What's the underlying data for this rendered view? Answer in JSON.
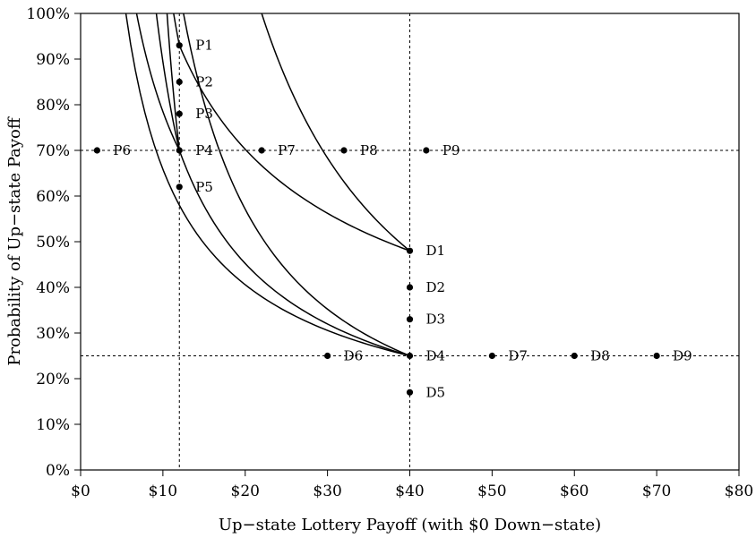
{
  "chart_data": {
    "type": "scatter",
    "xlabel": "Up−state Lottery Payoff (with $0 Down−state)",
    "ylabel": "Probability of Up−state Payoff",
    "xlim": [
      0,
      80
    ],
    "ylim": [
      0,
      100
    ],
    "x_ticks": [
      0,
      10,
      20,
      30,
      40,
      50,
      60,
      70,
      80
    ],
    "x_tick_labels": [
      "$0",
      "$10",
      "$20",
      "$30",
      "$40",
      "$50",
      "$60",
      "$70",
      "$80"
    ],
    "y_ticks": [
      0,
      10,
      20,
      30,
      40,
      50,
      60,
      70,
      80,
      90,
      100
    ],
    "y_tick_labels": [
      "0%",
      "10%",
      "20%",
      "30%",
      "40%",
      "50%",
      "60%",
      "70%",
      "80%",
      "90%",
      "100%"
    ],
    "grid": false,
    "reference_lines": [
      {
        "orientation": "vertical",
        "value": 12
      },
      {
        "orientation": "vertical",
        "value": 40
      },
      {
        "orientation": "horizontal",
        "value": 70
      },
      {
        "orientation": "horizontal",
        "value": 25
      }
    ],
    "points": [
      {
        "label": "P1",
        "x": 12,
        "y": 93
      },
      {
        "label": "P2",
        "x": 12,
        "y": 85
      },
      {
        "label": "P3",
        "x": 12,
        "y": 78
      },
      {
        "label": "P4",
        "x": 12,
        "y": 70
      },
      {
        "label": "P5",
        "x": 12,
        "y": 62
      },
      {
        "label": "P6",
        "x": 2,
        "y": 70
      },
      {
        "label": "P7",
        "x": 22,
        "y": 70
      },
      {
        "label": "P8",
        "x": 32,
        "y": 70
      },
      {
        "label": "P9",
        "x": 42,
        "y": 70
      },
      {
        "label": "D1",
        "x": 40,
        "y": 48
      },
      {
        "label": "D2",
        "x": 40,
        "y": 40
      },
      {
        "label": "D3",
        "x": 40,
        "y": 33
      },
      {
        "label": "D4",
        "x": 40,
        "y": 25
      },
      {
        "label": "D5",
        "x": 40,
        "y": 17
      },
      {
        "label": "D6",
        "x": 30,
        "y": 25
      },
      {
        "label": "D7",
        "x": 50,
        "y": 25
      },
      {
        "label": "D8",
        "x": 60,
        "y": 25
      },
      {
        "label": "D9",
        "x": 70,
        "y": 25
      }
    ],
    "curves": [
      {
        "through": [
          [
            11.3,
            100
          ],
          [
            12,
            93
          ],
          [
            40,
            48
          ]
        ]
      },
      {
        "through": [
          [
            22,
            100
          ],
          [
            40,
            48
          ]
        ]
      },
      {
        "through": [
          [
            9.2,
            100
          ],
          [
            12,
            70
          ],
          [
            40,
            25
          ]
        ]
      },
      {
        "through": [
          [
            12.5,
            100
          ],
          [
            40,
            25
          ]
        ]
      },
      {
        "through": [
          [
            5.5,
            100
          ],
          [
            40,
            25
          ]
        ]
      },
      {
        "through": [
          [
            6.8,
            100
          ],
          [
            12,
            70
          ]
        ]
      },
      {
        "through": [
          [
            10.5,
            100
          ],
          [
            12,
            70
          ]
        ]
      }
    ]
  }
}
